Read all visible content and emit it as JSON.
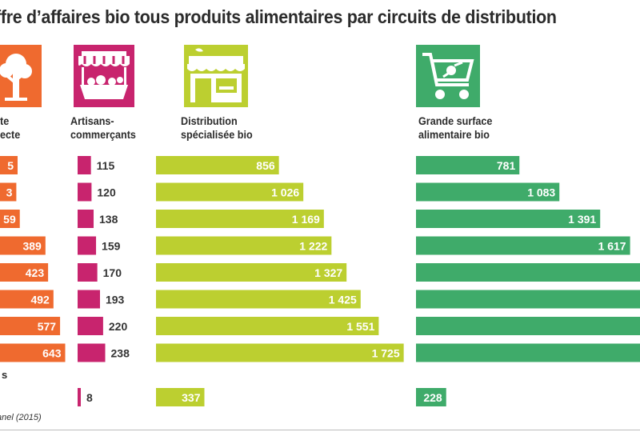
{
  "title": "ffre d’affaires bio tous produits alimentaires par circuits de distribution",
  "source_fragment": "anel (2015)",
  "footer_label_fragment": "s",
  "colors": {
    "vente_directe": "#ef6a2f",
    "artisans": "#c8246e",
    "distribution_specialisee": "#bccf30",
    "grande_surface": "#3fab6a",
    "icon_bg_orange": "#ef6a2f",
    "icon_bg_magenta": "#c8246e",
    "icon_bg_lime": "#bccf30",
    "icon_bg_green": "#3fab6a"
  },
  "icons": [
    "tree-icon",
    "market-stall-icon",
    "shop-icon",
    "shopping-cart-icon"
  ],
  "chart_data": {
    "type": "bar",
    "orientation": "horizontal",
    "title": "ffre d’affaires bio tous produits alimentaires par circuits de distribution",
    "row_count": 8,
    "series": [
      {
        "name": "te\necte",
        "color": "#ef6a2f",
        "values": [
          5,
          3,
          59,
          389,
          423,
          492,
          577,
          643
        ],
        "labels": [
          "5",
          "3",
          "59",
          "389",
          "423",
          "492",
          "577",
          "643"
        ],
        "extra_value": null,
        "extra_label": ""
      },
      {
        "name": "Artisans-\ncommerçants",
        "color": "#c8246e",
        "values": [
          115,
          120,
          138,
          159,
          170,
          193,
          220,
          238
        ],
        "labels": [
          "115",
          "120",
          "138",
          "159",
          "170",
          "193",
          "220",
          "238"
        ],
        "extra_value": 8,
        "extra_label": "8"
      },
      {
        "name": "Distribution\nspécialisée bio",
        "color": "#bccf30",
        "values": [
          856,
          1026,
          1169,
          1222,
          1327,
          1425,
          1551,
          1725
        ],
        "labels": [
          "856",
          "1 026",
          "1 169",
          "1 222",
          "1 327",
          "1 425",
          "1 551",
          "1 725"
        ],
        "extra_value": 337,
        "extra_label": "337"
      },
      {
        "name": "Grande surface\nalimentaire bio",
        "color": "#3fab6a",
        "values": [
          781,
          1083,
          1391,
          1617,
          null,
          null,
          null,
          null
        ],
        "labels": [
          "781",
          "1 083",
          "1 391",
          "1 617",
          "",
          "",
          "",
          ""
        ],
        "extra_value": 228,
        "extra_label": "228"
      }
    ]
  }
}
